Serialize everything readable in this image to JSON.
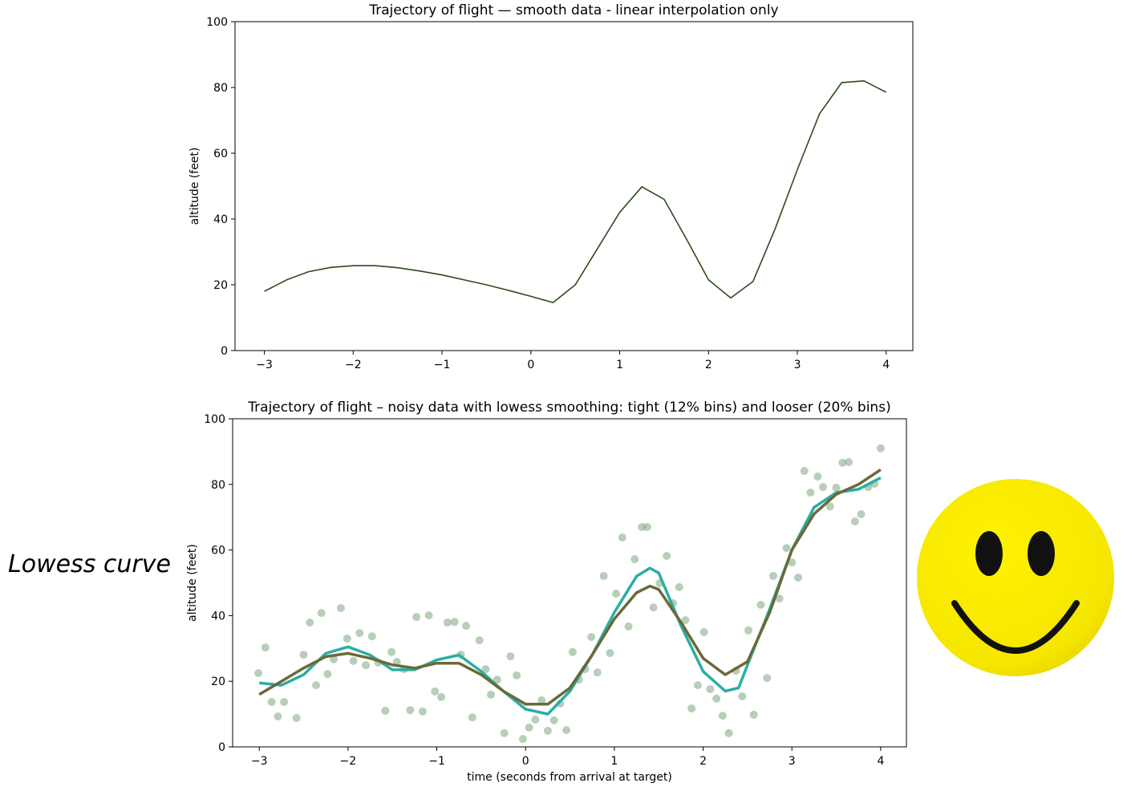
{
  "side_label": "Lowess curve",
  "chart_data": [
    {
      "type": "line",
      "title": "Trajectory of flight  —  smooth data - linear interpolation only",
      "ylabel": "altitude (feet)",
      "xlim": [
        -3.33,
        4.3
      ],
      "ylim": [
        0,
        100
      ],
      "xticks": [
        {
          "value": -3,
          "label": "−3"
        },
        {
          "value": -2,
          "label": "−2"
        },
        {
          "value": -1,
          "label": "−1"
        },
        0,
        1,
        2,
        3,
        4
      ],
      "yticks": [
        0,
        20,
        40,
        60,
        80,
        100
      ],
      "series": [
        {
          "color": "#2d4a1e",
          "x": [
            -3,
            -2.75,
            -2.5,
            -2.25,
            -2,
            -1.75,
            -1.5,
            -1.25,
            -1,
            -0.75,
            -0.5,
            -0.25,
            0,
            0.25,
            0.5,
            0.75,
            1,
            1.25,
            1.5,
            1.75,
            2,
            2.25,
            2.5,
            2.75,
            3,
            3.25,
            3.5,
            3.75,
            4
          ],
          "values": [
            18,
            21.5,
            24,
            25.3,
            25.8,
            25.8,
            25.2,
            24.2,
            23,
            21.5,
            20,
            18.3,
            16.5,
            14.6,
            20,
            31,
            42,
            49.8,
            46,
            34,
            21.5,
            16,
            21,
            37,
            55,
            72,
            81.5,
            82,
            78.5
          ]
        }
      ]
    },
    {
      "type": "scatter",
      "title": "Trajectory of flight  –  noisy data with lowess smoothing: tight (12% bins) and looser (20% bins)",
      "xlabel": "time (seconds from arrival at target)",
      "ylabel": "altitude (feet)",
      "xlim": [
        -3.3,
        4.29
      ],
      "ylim": [
        0,
        100
      ],
      "xticks": [
        {
          "value": -3,
          "label": "−3"
        },
        {
          "value": -2,
          "label": "−2"
        },
        {
          "value": -1,
          "label": "−1"
        },
        0,
        1,
        2,
        3,
        4
      ],
      "yticks": [
        0,
        20,
        40,
        60,
        80,
        100
      ],
      "series": [
        {
          "mode": "markers",
          "color": "#7ea67e",
          "x": [
            -3.01,
            -2.93,
            -2.86,
            -2.79,
            -2.72,
            -2.58,
            -2.5,
            -2.43,
            -2.36,
            -2.3,
            -2.23,
            -2.16,
            -2.08,
            -2.01,
            -1.94,
            -1.87,
            -1.8,
            -1.73,
            -1.66,
            -1.58,
            -1.51,
            -1.45,
            -1.37,
            -1.3,
            -1.23,
            -1.16,
            -1.09,
            -1.02,
            -0.95,
            -0.88,
            -0.8,
            -0.73,
            -0.67,
            -0.6,
            -0.52,
            -0.45,
            -0.39,
            -0.32,
            -0.24,
            -0.17,
            -0.1,
            -0.03,
            0.04,
            0.11,
            0.18,
            0.25,
            0.32,
            0.39,
            0.46,
            0.53,
            0.6,
            0.67,
            0.74,
            0.81,
            0.88,
            0.95,
            1.02,
            1.09,
            1.16,
            1.23,
            1.31,
            1.37,
            1.44,
            1.51,
            1.59,
            1.66,
            1.73,
            1.8,
            1.87,
            1.94,
            2.01,
            2.08,
            2.15,
            2.22,
            2.29,
            2.37,
            2.44,
            2.51,
            2.57,
            2.65,
            2.72,
            2.79,
            2.86,
            2.94,
            3.0,
            3.07,
            3.14,
            3.21,
            3.29,
            3.35,
            3.43,
            3.5,
            3.57,
            3.64,
            3.71,
            3.78,
            3.86,
            3.93,
            4.0
          ],
          "values": [
            22.5,
            30.3,
            13.7,
            9.3,
            13.7,
            8.8,
            28.1,
            37.9,
            18.8,
            40.8,
            22.2,
            26.7,
            42.3,
            33,
            26.2,
            34.7,
            24.9,
            33.7,
            25.7,
            11,
            28.9,
            25.9,
            23.7,
            11.2,
            39.6,
            10.8,
            40.1,
            16.9,
            15.2,
            37.9,
            38.1,
            28.1,
            36.9,
            9,
            32.5,
            23.7,
            15.9,
            20.5,
            4.2,
            27.6,
            21.8,
            2.4,
            5.9,
            8.3,
            14.2,
            4.9,
            8.1,
            13.2,
            5.1,
            28.9,
            20.5,
            23.7,
            33.5,
            22.7,
            52.1,
            28.6,
            46.7,
            63.8,
            36.7,
            57.2,
            67,
            67,
            42.5,
            49.9,
            58.2,
            43.8,
            48.7,
            38.6,
            11.7,
            18.8,
            35,
            17.6,
            14.7,
            9.5,
            4.2,
            23.2,
            15.4,
            35.5,
            9.8,
            43.3,
            21,
            52.1,
            45.2,
            60.6,
            56.2,
            51.6,
            84.1,
            77.5,
            82.4,
            79.2,
            73.3,
            79,
            86.6,
            86.8,
            68.7,
            70.9,
            79.2,
            80.2,
            91
          ]
        },
        {
          "mode": "lines",
          "color": "#2aaea4",
          "x": [
            -3,
            -2.75,
            -2.5,
            -2.25,
            -2,
            -1.75,
            -1.5,
            -1.25,
            -1,
            -0.75,
            -0.5,
            -0.25,
            0,
            0.25,
            0.5,
            0.75,
            1,
            1.25,
            1.4,
            1.5,
            1.75,
            2,
            2.25,
            2.4,
            2.5,
            2.75,
            3,
            3.25,
            3.5,
            3.75,
            4
          ],
          "values": [
            19.5,
            18.8,
            22,
            28.5,
            30.5,
            28,
            23.5,
            23.5,
            26.5,
            28,
            23,
            17,
            11.5,
            10,
            17,
            28,
            41,
            52,
            54.5,
            53,
            37,
            23,
            17,
            18,
            25,
            42,
            60,
            73,
            77.5,
            78.5,
            82
          ]
        },
        {
          "mode": "lines",
          "color": "#6b6937",
          "x": [
            -3,
            -2.75,
            -2.5,
            -2.25,
            -2,
            -1.75,
            -1.5,
            -1.25,
            -1,
            -0.75,
            -0.5,
            -0.25,
            0,
            0.25,
            0.5,
            0.75,
            1,
            1.25,
            1.4,
            1.5,
            1.75,
            2,
            2.25,
            2.5,
            2.75,
            3,
            3.25,
            3.5,
            3.75,
            4
          ],
          "values": [
            16,
            20,
            24,
            27.5,
            28.5,
            27,
            25,
            24,
            25.5,
            25.5,
            22,
            17,
            13,
            13,
            18,
            28,
            39,
            47,
            49,
            48,
            38,
            27,
            22,
            26,
            41,
            60,
            71,
            77,
            80,
            84.5
          ]
        }
      ]
    }
  ]
}
